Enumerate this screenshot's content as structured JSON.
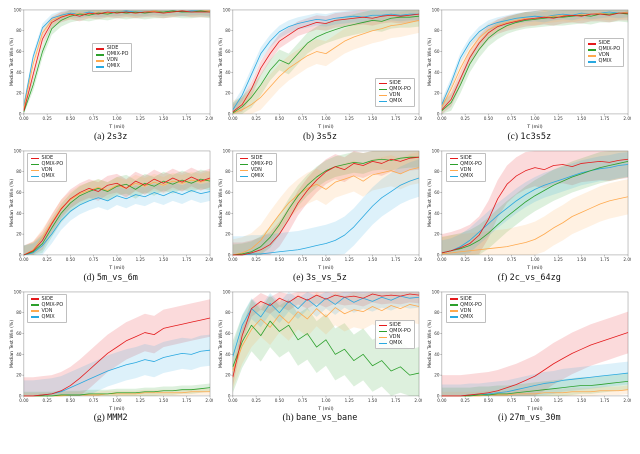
{
  "figure": {
    "background": "#ffffff"
  },
  "axes": {
    "xlabel": "T (mil)",
    "ylabel": "Median Test Win (%)",
    "xlim": [
      0,
      2
    ],
    "ylim": [
      0,
      100
    ],
    "xticks": [
      0,
      0.25,
      0.5,
      0.75,
      1,
      1.25,
      1.5,
      1.75,
      2
    ],
    "yticks": [
      0,
      20,
      40,
      60,
      80,
      100
    ],
    "xs": [
      0,
      0.1,
      0.2,
      0.3,
      0.4,
      0.5,
      0.6,
      0.7,
      0.8,
      0.9,
      1.0,
      1.1,
      1.2,
      1.3,
      1.4,
      1.5,
      1.6,
      1.7,
      1.8,
      1.9,
      2.0
    ]
  },
  "legend": {
    "labels": [
      "SIDE",
      "QMIX-PO",
      "VDN",
      "QMIX"
    ],
    "colors": {
      "SIDE": "#e41a1c",
      "QMIX-PO": "#2ca02c",
      "VDN": "#ffa94d",
      "QMIX": "#29a8e0"
    }
  },
  "chart_data": [
    {
      "type": "line",
      "id": "2s3z",
      "caption_label": "(a)",
      "caption_name": "2s3z",
      "legend_pos": "center",
      "series": [
        {
          "name": "SIDE",
          "band": 5,
          "values": [
            3,
            38,
            72,
            88,
            93,
            96,
            94,
            97,
            96,
            98,
            97,
            98,
            97,
            98,
            98,
            97,
            98,
            99,
            98,
            98,
            98
          ]
        },
        {
          "name": "QMIX-PO",
          "band": 6,
          "values": [
            2,
            28,
            60,
            82,
            90,
            94,
            96,
            95,
            97,
            96,
            98,
            97,
            98,
            97,
            98,
            98,
            99,
            98,
            98,
            99,
            98
          ]
        },
        {
          "name": "VDN",
          "band": 4,
          "values": [
            6,
            48,
            78,
            90,
            94,
            95,
            97,
            96,
            98,
            97,
            98,
            98,
            97,
            98,
            99,
            98,
            98,
            99,
            98,
            99,
            99
          ]
        },
        {
          "name": "QMIX",
          "band": 4,
          "values": [
            8,
            55,
            83,
            92,
            95,
            97,
            96,
            98,
            97,
            98,
            98,
            99,
            98,
            98,
            99,
            98,
            99,
            98,
            99,
            99,
            98
          ]
        }
      ]
    },
    {
      "type": "line",
      "id": "3s5z",
      "caption_label": "(b)",
      "caption_name": "3s5z",
      "legend_pos": "bottom-right",
      "series": [
        {
          "name": "SIDE",
          "band": 7,
          "values": [
            2,
            9,
            24,
            44,
            58,
            70,
            76,
            82,
            85,
            88,
            87,
            90,
            91,
            92,
            93,
            92,
            94,
            95,
            94,
            95,
            96
          ]
        },
        {
          "name": "QMIX-PO",
          "band": 10,
          "values": [
            1,
            7,
            16,
            28,
            42,
            52,
            48,
            58,
            68,
            74,
            78,
            81,
            84,
            86,
            88,
            90,
            89,
            92,
            93,
            93,
            94
          ]
        },
        {
          "name": "VDN",
          "band": 12,
          "values": [
            1,
            4,
            9,
            16,
            26,
            36,
            44,
            50,
            56,
            60,
            58,
            64,
            70,
            74,
            77,
            80,
            82,
            85,
            86,
            88,
            90
          ]
        },
        {
          "name": "QMIX",
          "band": 6,
          "values": [
            4,
            18,
            38,
            58,
            70,
            79,
            84,
            87,
            89,
            91,
            90,
            92,
            93,
            94,
            93,
            95,
            95,
            96,
            95,
            96,
            96
          ]
        }
      ]
    },
    {
      "type": "line",
      "id": "1c3s5z",
      "caption_label": "(c)",
      "caption_name": "1c3s5z",
      "legend_pos": "center-right",
      "series": [
        {
          "name": "SIDE",
          "band": 7,
          "values": [
            4,
            14,
            34,
            54,
            68,
            78,
            84,
            87,
            89,
            91,
            92,
            93,
            92,
            94,
            95,
            94,
            96,
            96,
            95,
            97,
            97
          ]
        },
        {
          "name": "QMIX-PO",
          "band": 8,
          "values": [
            3,
            11,
            28,
            48,
            62,
            73,
            80,
            85,
            88,
            90,
            91,
            92,
            93,
            93,
            94,
            95,
            94,
            96,
            96,
            97,
            96
          ]
        },
        {
          "name": "VDN",
          "band": 6,
          "values": [
            7,
            24,
            44,
            61,
            73,
            81,
            85,
            88,
            90,
            92,
            91,
            93,
            94,
            95,
            94,
            96,
            96,
            97,
            96,
            97,
            98
          ]
        },
        {
          "name": "QMIX",
          "band": 5,
          "values": [
            9,
            30,
            54,
            69,
            79,
            85,
            88,
            90,
            92,
            93,
            94,
            93,
            95,
            96,
            95,
            97,
            96,
            97,
            98,
            97,
            98
          ]
        }
      ]
    },
    {
      "type": "line",
      "id": "5m_vs_6m",
      "caption_label": "(d)",
      "caption_name": "5m_vs_6m",
      "legend_pos": "top-left",
      "series": [
        {
          "name": "SIDE",
          "band": 9,
          "values": [
            0,
            4,
            14,
            30,
            44,
            54,
            60,
            64,
            61,
            67,
            69,
            64,
            71,
            67,
            73,
            69,
            74,
            70,
            75,
            71,
            74
          ]
        },
        {
          "name": "QMIX-PO",
          "band": 9,
          "values": [
            0,
            3,
            11,
            26,
            40,
            50,
            57,
            61,
            64,
            61,
            66,
            68,
            63,
            69,
            66,
            71,
            68,
            72,
            69,
            73,
            71
          ]
        },
        {
          "name": "VDN",
          "band": 8,
          "values": [
            0,
            5,
            17,
            31,
            45,
            53,
            59,
            62,
            65,
            62,
            67,
            64,
            69,
            66,
            70,
            67,
            71,
            69,
            72,
            70,
            73
          ]
        },
        {
          "name": "QMIX",
          "band": 9,
          "values": [
            0,
            2,
            9,
            20,
            33,
            42,
            48,
            52,
            55,
            52,
            57,
            54,
            58,
            56,
            60,
            57,
            61,
            58,
            62,
            59,
            61
          ]
        }
      ]
    },
    {
      "type": "line",
      "id": "3s_vs_5z",
      "caption_label": "(e)",
      "caption_name": "3s_vs_5z",
      "legend_pos": "top-left",
      "series": [
        {
          "name": "SIDE",
          "band": 12,
          "values": [
            0,
            0,
            2,
            5,
            10,
            20,
            34,
            50,
            62,
            72,
            80,
            85,
            82,
            88,
            86,
            90,
            88,
            92,
            90,
            93,
            94
          ]
        },
        {
          "name": "QMIX-PO",
          "band": 10,
          "values": [
            0,
            1,
            3,
            8,
            17,
            29,
            44,
            57,
            67,
            75,
            81,
            85,
            87,
            89,
            88,
            91,
            92,
            91,
            93,
            94,
            94
          ]
        },
        {
          "name": "VDN",
          "band": 15,
          "values": [
            0,
            2,
            6,
            14,
            27,
            39,
            50,
            58,
            64,
            68,
            63,
            70,
            73,
            76,
            71,
            77,
            79,
            81,
            78,
            82,
            84
          ]
        },
        {
          "name": "QMIX",
          "band": 18,
          "values": [
            0,
            0,
            1,
            1,
            2,
            3,
            4,
            5,
            7,
            9,
            11,
            14,
            19,
            27,
            37,
            47,
            55,
            61,
            67,
            71,
            74
          ]
        }
      ]
    },
    {
      "type": "line",
      "id": "2c_vs_64zg",
      "caption_label": "(f)",
      "caption_name": "2c_vs_64zg",
      "legend_pos": "top-left",
      "series": [
        {
          "name": "SIDE",
          "band": 18,
          "values": [
            2,
            4,
            7,
            11,
            19,
            34,
            54,
            68,
            76,
            81,
            84,
            82,
            86,
            87,
            85,
            88,
            89,
            90,
            89,
            91,
            92
          ]
        },
        {
          "name": "QMIX-PO",
          "band": 15,
          "values": [
            2,
            4,
            6,
            9,
            14,
            21,
            29,
            37,
            44,
            51,
            57,
            62,
            67,
            71,
            75,
            78,
            81,
            84,
            86,
            88,
            90
          ]
        },
        {
          "name": "VDN",
          "band": 17,
          "values": [
            1,
            2,
            3,
            4,
            5,
            6,
            7,
            8,
            10,
            12,
            15,
            20,
            26,
            31,
            37,
            41,
            45,
            49,
            52,
            54,
            56
          ]
        },
        {
          "name": "QMIX",
          "band": 12,
          "values": [
            2,
            4,
            8,
            14,
            22,
            30,
            38,
            45,
            52,
            58,
            63,
            67,
            70,
            73,
            76,
            79,
            81,
            83,
            84,
            86,
            87
          ]
        }
      ]
    },
    {
      "type": "line",
      "id": "MMM2",
      "caption_label": "(g)",
      "caption_name": "MMM2",
      "legend_pos": "top-left",
      "series": [
        {
          "name": "SIDE",
          "band": 18,
          "values": [
            0,
            0,
            1,
            2,
            5,
            10,
            17,
            25,
            33,
            41,
            47,
            53,
            57,
            61,
            59,
            65,
            67,
            69,
            71,
            73,
            75
          ]
        },
        {
          "name": "QMIX-PO",
          "band": 4,
          "values": [
            0,
            0,
            0,
            0,
            1,
            1,
            1,
            2,
            2,
            2,
            3,
            3,
            3,
            4,
            4,
            5,
            5,
            6,
            6,
            7,
            8
          ]
        },
        {
          "name": "VDN",
          "band": 3,
          "values": [
            0,
            0,
            0,
            0,
            0,
            1,
            1,
            1,
            1,
            2,
            2,
            2,
            2,
            3,
            3,
            3,
            3,
            3,
            4,
            4,
            4
          ]
        },
        {
          "name": "QMIX",
          "band": 15,
          "values": [
            0,
            0,
            1,
            2,
            4,
            8,
            12,
            16,
            20,
            24,
            27,
            30,
            32,
            35,
            33,
            37,
            39,
            41,
            40,
            43,
            44
          ]
        }
      ]
    },
    {
      "type": "line",
      "id": "bane_vs_bane",
      "caption_label": "(h)",
      "caption_name": "bane_vs_bane",
      "legend_pos": "center-right",
      "series": [
        {
          "name": "SIDE",
          "band": 8,
          "values": [
            18,
            58,
            84,
            91,
            87,
            94,
            90,
            96,
            92,
            97,
            93,
            97,
            95,
            96,
            94,
            98,
            96,
            97,
            96,
            98,
            97
          ]
        },
        {
          "name": "QMIX-PO",
          "band": 25,
          "values": [
            28,
            52,
            68,
            58,
            72,
            62,
            68,
            54,
            60,
            47,
            54,
            40,
            45,
            34,
            40,
            29,
            34,
            24,
            28,
            20,
            22
          ]
        },
        {
          "name": "VDN",
          "band": 17,
          "values": [
            24,
            48,
            64,
            74,
            66,
            78,
            70,
            81,
            74,
            84,
            76,
            85,
            79,
            83,
            81,
            86,
            82,
            87,
            84,
            88,
            86
          ]
        },
        {
          "name": "QMIX",
          "band": 10,
          "values": [
            38,
            68,
            84,
            76,
            89,
            80,
            91,
            84,
            93,
            86,
            94,
            88,
            95,
            90,
            94,
            91,
            95,
            92,
            96,
            94,
            95
          ]
        }
      ]
    },
    {
      "type": "line",
      "id": "27m_vs_30m",
      "caption_label": "(i)",
      "caption_name": "27m_vs_30m",
      "legend_pos": "top-left",
      "series": [
        {
          "name": "SIDE",
          "band": 20,
          "values": [
            0,
            0,
            0,
            1,
            2,
            3,
            5,
            8,
            11,
            15,
            19,
            25,
            31,
            36,
            41,
            45,
            49,
            52,
            55,
            58,
            61
          ]
        },
        {
          "name": "QMIX-PO",
          "band": 8,
          "values": [
            0,
            0,
            0,
            0,
            1,
            1,
            2,
            2,
            3,
            4,
            5,
            6,
            7,
            8,
            9,
            10,
            10,
            11,
            12,
            13,
            14
          ]
        },
        {
          "name": "VDN",
          "band": 4,
          "values": [
            0,
            0,
            0,
            0,
            0,
            1,
            1,
            1,
            2,
            2,
            2,
            3,
            3,
            3,
            4,
            4,
            4,
            5,
            5,
            5,
            6
          ]
        },
        {
          "name": "QMIX",
          "band": 11,
          "values": [
            0,
            0,
            0,
            1,
            1,
            2,
            3,
            4,
            6,
            8,
            10,
            12,
            13,
            15,
            16,
            17,
            18,
            19,
            20,
            21,
            22
          ]
        }
      ]
    }
  ]
}
